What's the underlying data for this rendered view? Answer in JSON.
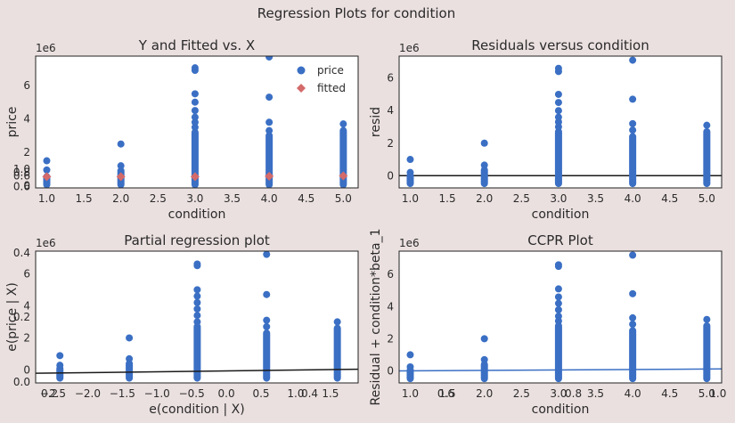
{
  "figure": {
    "suptitle": "Regression Plots for condition"
  },
  "chart_data": [
    {
      "id": "fitted",
      "type": "scatter",
      "title": "Y and Fitted vs. X",
      "xlabel": "condition",
      "ylabel": "price",
      "offset_label": "1e6",
      "xlim": [
        0.85,
        5.2
      ],
      "ylim": [
        -0.12,
        7.75
      ],
      "xticks": [
        1.0,
        1.5,
        2.0,
        2.5,
        3.0,
        3.5,
        4.0,
        4.5,
        5.0
      ],
      "yticks": [
        0,
        2,
        4,
        6
      ],
      "x_tick_labels": [
        "1.0",
        "1.5",
        "2.0",
        "2.5",
        "3.0",
        "3.5",
        "4.0",
        "4.5",
        "5.0"
      ],
      "y_tick_labels": [
        "0",
        "2",
        "4",
        "6"
      ],
      "legend": {
        "placement": "top-right",
        "entries": [
          "price",
          "fitted"
        ]
      },
      "series": [
        {
          "name": "price",
          "marker": "circle",
          "color": "#3a6fc4",
          "columns": [
            {
              "x": 1,
              "min": 0.08,
              "max": 0.55,
              "outliers": [
                0.95,
                1.5
              ]
            },
            {
              "x": 2,
              "min": 0.08,
              "max": 0.9,
              "outliers": [
                1.2,
                2.5
              ]
            },
            {
              "x": 3,
              "min": 0.08,
              "max": 3.2,
              "outliers": [
                3.5,
                3.8,
                4.1,
                4.5,
                5.0,
                5.5,
                6.9,
                7.05
              ]
            },
            {
              "x": 4,
              "min": 0.08,
              "max": 3.0,
              "outliers": [
                3.3,
                3.8,
                5.3,
                7.7
              ]
            },
            {
              "x": 5,
              "min": 0.08,
              "max": 3.3,
              "outliers": [
                3.7
              ]
            }
          ]
        },
        {
          "name": "fitted",
          "marker": "diamond",
          "color": "#d46a6a",
          "x": [
            1,
            2,
            3,
            4,
            5
          ],
          "y": [
            0.55,
            0.55,
            0.55,
            0.58,
            0.6
          ]
        }
      ],
      "extra_ticks": [
        {
          "axis": "y",
          "text": "1.0",
          "pos": 1.0
        },
        {
          "axis": "y",
          "text": "0.8",
          "pos": 0.8
        },
        {
          "axis": "y",
          "text": "0.6",
          "pos": 0.6
        },
        {
          "axis": "y",
          "text": "0.6",
          "pos": -0.05
        }
      ]
    },
    {
      "id": "resid",
      "type": "scatter",
      "title": "Residuals versus condition",
      "xlabel": "condition",
      "ylabel": "resid",
      "offset_label": "1e6",
      "xlim": [
        0.85,
        5.2
      ],
      "ylim": [
        -0.75,
        7.35
      ],
      "xticks": [
        1.0,
        1.5,
        2.0,
        2.5,
        3.0,
        3.5,
        4.0,
        4.5,
        5.0
      ],
      "yticks": [
        0,
        2,
        4,
        6
      ],
      "x_tick_labels": [
        "1.0",
        "1.5",
        "2.0",
        "2.5",
        "3.0",
        "3.5",
        "4.0",
        "4.5",
        "5.0"
      ],
      "y_tick_labels": [
        "0",
        "2",
        "4",
        "6"
      ],
      "hline": 0,
      "series": [
        {
          "name": "resid",
          "marker": "circle",
          "color": "#3a6fc4",
          "columns": [
            {
              "x": 1,
              "min": -0.48,
              "max": 0.0,
              "outliers": [
                0.2,
                1.0
              ]
            },
            {
              "x": 2,
              "min": -0.48,
              "max": 0.35,
              "outliers": [
                0.65,
                2.0
              ]
            },
            {
              "x": 3,
              "min": -0.48,
              "max": 2.7,
              "outliers": [
                3.0,
                3.3,
                3.6,
                4.0,
                4.5,
                5.0,
                6.4,
                6.6
              ]
            },
            {
              "x": 4,
              "min": -0.48,
              "max": 2.4,
              "outliers": [
                2.8,
                3.2,
                4.7,
                7.1
              ]
            },
            {
              "x": 5,
              "min": -0.48,
              "max": 2.7,
              "outliers": [
                3.1
              ]
            }
          ]
        }
      ]
    },
    {
      "id": "partial",
      "type": "scatter",
      "title": "Partial regression plot",
      "xlabel": "e(condition | X)",
      "ylabel": "e(price | X)",
      "offset_label": "1e6",
      "xlim": [
        -2.75,
        1.9
      ],
      "ylim": [
        -0.8,
        7.4
      ],
      "xticks": [
        -2.5,
        -2.0,
        -1.5,
        -1.0,
        -0.5,
        0.0,
        0.5,
        1.0,
        1.5
      ],
      "yticks": [
        0,
        2,
        4,
        6
      ],
      "x_tick_labels": [
        "−2.5",
        "−2.0",
        "−1.5",
        "−1.0",
        "−0.5",
        "0.0",
        "0.5",
        "1.0",
        "1.5"
      ],
      "y_tick_labels": [
        "0",
        "2",
        "4",
        "6"
      ],
      "fit_line": {
        "x": [
          -2.75,
          1.9
        ],
        "y": [
          -0.2,
          0.05
        ],
        "color": "#1a1a1a"
      },
      "series": [
        {
          "name": "partial",
          "marker": "circle",
          "color": "#3a6fc4",
          "columns": [
            {
              "x": -2.4,
              "min": -0.5,
              "max": 0.1,
              "outliers": [
                0.3,
                0.9
              ]
            },
            {
              "x": -1.4,
              "min": -0.5,
              "max": 0.4,
              "outliers": [
                0.7,
                2.0
              ]
            },
            {
              "x": -0.42,
              "min": -0.5,
              "max": 2.7,
              "outliers": [
                3.0,
                3.4,
                3.8,
                4.2,
                4.6,
                5.0,
                6.5,
                6.6
              ]
            },
            {
              "x": 0.58,
              "min": -0.5,
              "max": 2.3,
              "outliers": [
                2.7,
                3.1,
                4.7,
                7.2
              ]
            },
            {
              "x": 1.6,
              "min": -0.5,
              "max": 2.6,
              "outliers": [
                3.0
              ]
            }
          ]
        }
      ],
      "extra_ticks": [
        {
          "axis": "y",
          "text": "0.4",
          "pos": 7.3
        },
        {
          "axis": "y",
          "text": "0.2",
          "pos": 3.3
        },
        {
          "axis": "y",
          "text": "0.0",
          "pos": -0.75
        },
        {
          "axis": "x",
          "text": "0.2",
          "pos": -2.55
        },
        {
          "axis": "x",
          "text": "0.4",
          "pos": 1.2
        }
      ]
    },
    {
      "id": "ccpr",
      "type": "scatter",
      "title": "CCPR Plot",
      "xlabel": "condition",
      "ylabel": "Residual + condition*beta_1",
      "offset_label": "1e6",
      "xlim": [
        0.85,
        5.2
      ],
      "ylim": [
        -0.75,
        7.45
      ],
      "xticks": [
        1.0,
        1.5,
        2.0,
        2.5,
        3.0,
        3.5,
        4.0,
        4.5,
        5.0
      ],
      "yticks": [
        0,
        2,
        4,
        6
      ],
      "x_tick_labels": [
        "1.0",
        "1.5",
        "2.0",
        "2.5",
        "3.0",
        "3.5",
        "4.0",
        "4.5",
        "5.0"
      ],
      "y_tick_labels": [
        "0",
        "2",
        "4",
        "6"
      ],
      "fit_line": {
        "x": [
          0.85,
          5.2
        ],
        "y": [
          0.0,
          0.12
        ],
        "color": "#3a6fc4"
      },
      "series": [
        {
          "name": "ccpr",
          "marker": "circle",
          "color": "#3a6fc4",
          "columns": [
            {
              "x": 1,
              "min": -0.48,
              "max": 0.05,
              "outliers": [
                0.25,
                1.0
              ]
            },
            {
              "x": 2,
              "min": -0.48,
              "max": 0.4,
              "outliers": [
                0.7,
                2.0
              ]
            },
            {
              "x": 3,
              "min": -0.48,
              "max": 2.8,
              "outliers": [
                3.1,
                3.4,
                3.8,
                4.2,
                4.6,
                5.1,
                6.5,
                6.6
              ]
            },
            {
              "x": 4,
              "min": -0.48,
              "max": 2.5,
              "outliers": [
                2.9,
                3.3,
                4.8,
                7.2
              ]
            },
            {
              "x": 5,
              "min": -0.48,
              "max": 2.8,
              "outliers": [
                3.2
              ]
            }
          ]
        }
      ],
      "extra_ticks": [
        {
          "axis": "x",
          "text": "0.6",
          "pos": 1.48
        },
        {
          "axis": "x",
          "text": "0.8",
          "pos": 3.2
        },
        {
          "axis": "x",
          "text": "1.0",
          "pos": 5.15
        }
      ]
    }
  ]
}
